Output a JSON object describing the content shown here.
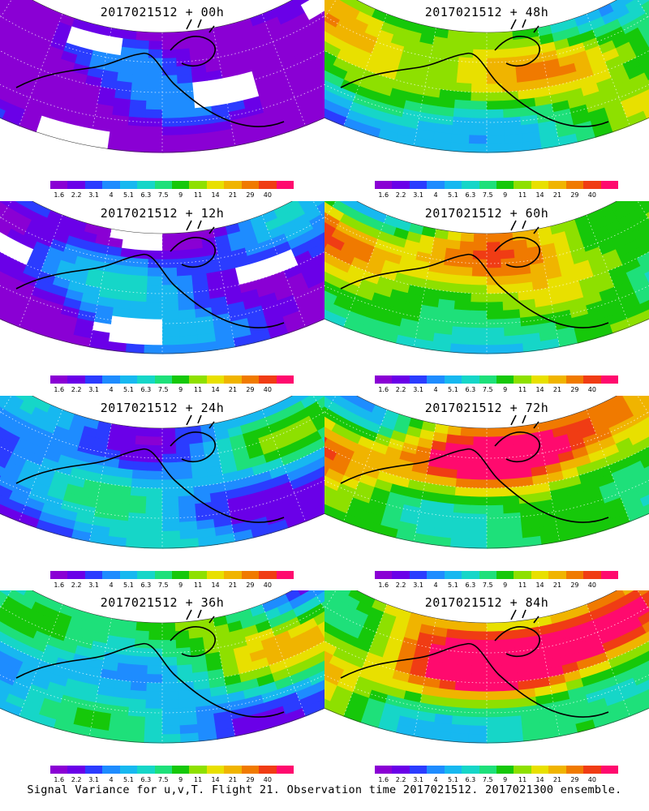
{
  "panels": [
    {
      "title": "2017021512 + 00h"
    },
    {
      "title": "2017021512 + 48h"
    },
    {
      "title": "2017021512 + 12h"
    },
    {
      "title": "2017021512 + 60h"
    },
    {
      "title": "2017021512 + 24h"
    },
    {
      "title": "2017021512 + 72h"
    },
    {
      "title": "2017021512 + 36h"
    },
    {
      "title": "2017021512 + 84h"
    }
  ],
  "colorbar": {
    "labels": [
      "1.6",
      "2.2",
      "3.1",
      "4",
      "5.1",
      "6.3",
      "7.5",
      "9",
      "11",
      "14",
      "21",
      "29",
      "40"
    ],
    "colors": [
      "#8a00d4",
      "#6a00e8",
      "#2b3cff",
      "#1e8cff",
      "#17b8f0",
      "#16d6c8",
      "#1ee07a",
      "#16c80a",
      "#8ee000",
      "#e8e000",
      "#f0b400",
      "#f07a00",
      "#f03c14",
      "#ff0a6e"
    ]
  },
  "footer": "Signal Variance for u,v,T. Flight 21. Observation time 2017021512. 2017021300 ensemble."
}
